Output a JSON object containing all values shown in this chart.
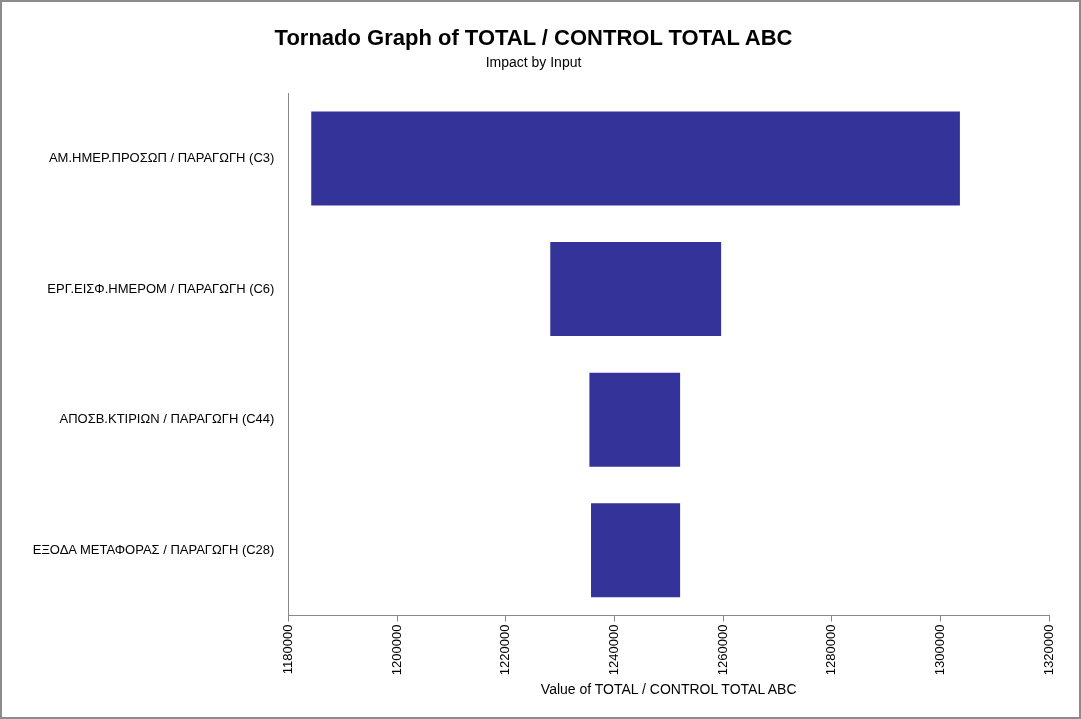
{
  "chart_data": {
    "type": "bar",
    "orientation": "horizontal",
    "title": "Tornado Graph of TOTAL / CONTROL TOTAL ABC",
    "subtitle": "Impact by Input",
    "xlabel": "Value of TOTAL / CONTROL TOTAL ABC",
    "categories": [
      "ΑΜ.ΗΜΕΡ.ΠΡΟΣΩΠ / ΠΑΡΑΓΩΓΗ (C3)",
      "ΕΡΓ.ΕΙΣΦ.ΗΜΕΡΟΜ / ΠΑΡΑΓΩΓΗ (C6)",
      "ΑΠΟΣΒ.ΚΤΙΡΙΩΝ / ΠΑΡΑΓΩΓΗ (C44)",
      "ΕΞΟΔΑ ΜΕΤΑΦΟΡΑΣ / ΠΑΡΑΓΩΓΗ (C28)"
    ],
    "base": [
      1184200,
      1228200,
      1235400,
      1235700
    ],
    "values": [
      119400,
      31450,
      16700,
      16400
    ],
    "color": "#333399",
    "xlim": [
      1180000,
      1320000
    ],
    "xticks": [
      1180000,
      1200000,
      1220000,
      1240000,
      1260000,
      1280000,
      1300000,
      1320000
    ],
    "grid": false,
    "legend": false
  }
}
